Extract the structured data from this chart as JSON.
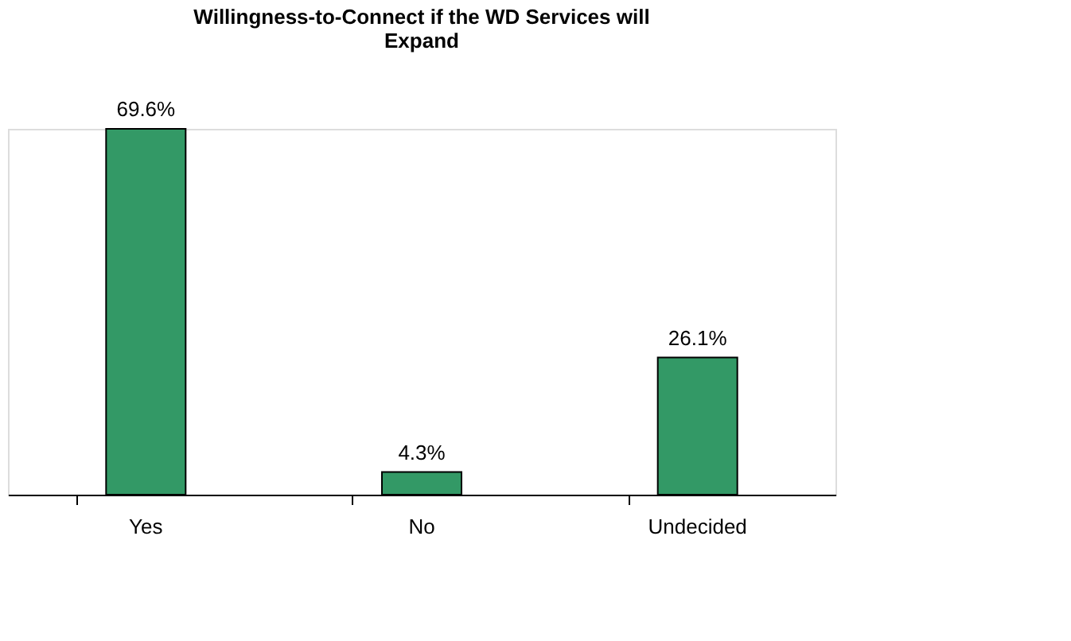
{
  "chart_data": {
    "type": "bar",
    "title": "Willingness-to-Connect if the WD Services will Expand",
    "categories": [
      "Yes",
      "No",
      "Undecided"
    ],
    "values": [
      69.6,
      4.3,
      26.1
    ],
    "value_labels": [
      "69.6%",
      "4.3%",
      "26.1%"
    ],
    "color": "#339966",
    "grid": false
  }
}
